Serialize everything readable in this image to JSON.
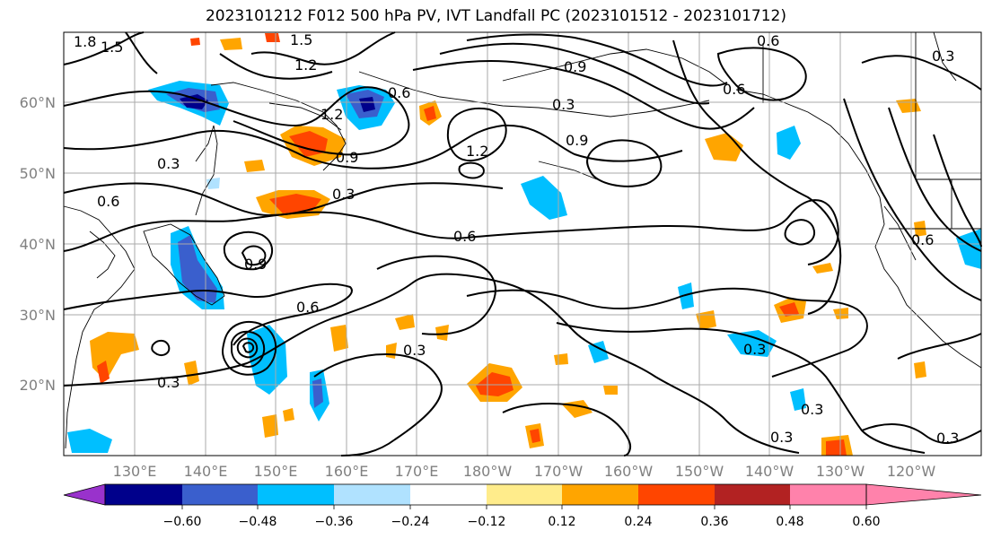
{
  "title": "2023101212 F012 500 hPa PV, IVT Landfall PC (2023101512 - 2023101712)",
  "lat_labels": [
    "60°N",
    "50°N",
    "40°N",
    "30°N",
    "20°N"
  ],
  "lon_labels": [
    "130°E",
    "140°E",
    "150°E",
    "160°E",
    "170°E",
    "180°W",
    "170°W",
    "160°W",
    "150°W",
    "140°W",
    "130°W",
    "120°W"
  ],
  "contour_labels": [
    "1.8",
    "1.5",
    "1.5",
    "1.2",
    "1.2",
    "1.2",
    "0.9",
    "0.9",
    "0.9",
    "0.9",
    "0.6",
    "0.6",
    "0.6",
    "0.6",
    "0.6",
    "0.6",
    "0.6",
    "0.3",
    "0.3",
    "0.3",
    "0.3",
    "0.3",
    "0.3",
    "0.3",
    "0.3",
    "0.3",
    "0.3"
  ],
  "colorbar": {
    "ticks": [
      "−0.60",
      "−0.48",
      "−0.36",
      "−0.24",
      "−0.12",
      "0.12",
      "0.24",
      "0.36",
      "0.48",
      "0.60"
    ],
    "colors": [
      "#9932cc",
      "#00008b",
      "#3a5fcd",
      "#00bfff",
      "#b0e2ff",
      "#ffffff",
      "#ffec8b",
      "#ffa500",
      "#ff4500",
      "#b22222",
      "#ff82ab"
    ]
  },
  "colors": {
    "neg_strong": "#3a5fcd",
    "neg_mid": "#00bfff",
    "neg_weak": "#b0e2ff",
    "pos_weak": "#ffec8b",
    "pos_mid": "#ffa500",
    "pos_strong": "#ff4500",
    "deep_blue": "#00008b"
  }
}
